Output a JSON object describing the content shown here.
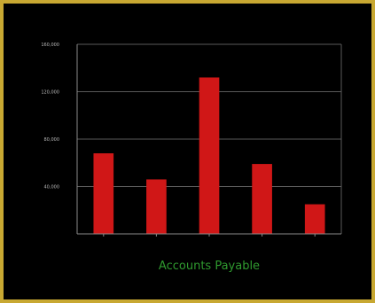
{
  "chart_data": {
    "type": "bar",
    "title": "",
    "xlabel": "Accounts Payable",
    "ylabel": "",
    "categories": [
      "",
      "",
      "",
      "",
      ""
    ],
    "values": [
      68000,
      46000,
      132000,
      59000,
      25000
    ],
    "ylim": [
      0,
      160000
    ],
    "yticks": [
      40000,
      80000,
      120000,
      160000
    ],
    "ytick_labels": [
      "40,000",
      "80,000",
      "120,000",
      "160,000"
    ],
    "grid": true,
    "legend": "none"
  },
  "colors": {
    "bar": "#d01717",
    "gridline": "#5a5a5a",
    "axis": "#8a8a8a",
    "background": "#000000",
    "border": "#c8a832"
  }
}
